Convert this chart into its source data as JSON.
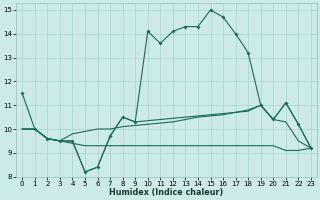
{
  "xlabel": "Humidex (Indice chaleur)",
  "xlim": [
    -0.5,
    23.5
  ],
  "ylim": [
    8,
    15.3
  ],
  "xticks": [
    0,
    1,
    2,
    3,
    4,
    5,
    6,
    7,
    8,
    9,
    10,
    11,
    12,
    13,
    14,
    15,
    16,
    17,
    18,
    19,
    20,
    21,
    22,
    23
  ],
  "yticks": [
    8,
    9,
    10,
    11,
    12,
    13,
    14,
    15
  ],
  "bg_color": "#cceae7",
  "line_color": "#1a6b5a",
  "grid_color": "#aad4d0",
  "line1_x": [
    0,
    1,
    2,
    3,
    4,
    5,
    6,
    7,
    8,
    9,
    10,
    11,
    12,
    13,
    14,
    15,
    16,
    17,
    18,
    19,
    20,
    21,
    22,
    23
  ],
  "line1_y": [
    11.5,
    10.0,
    9.6,
    9.5,
    9.5,
    8.2,
    8.4,
    9.7,
    10.5,
    10.3,
    14.1,
    13.6,
    14.1,
    14.3,
    14.3,
    15.0,
    14.7,
    14.0,
    13.2,
    11.0,
    10.4,
    11.1,
    10.2,
    9.2
  ],
  "line1_has_markers": true,
  "line2_x": [
    0,
    1,
    2,
    3,
    4,
    5,
    6,
    7,
    8,
    9,
    10,
    11,
    12,
    13,
    14,
    15,
    16,
    17,
    18,
    19,
    20,
    21,
    22,
    23
  ],
  "line2_y": [
    10.0,
    10.0,
    9.6,
    9.5,
    9.8,
    9.9,
    10.0,
    10.0,
    10.1,
    10.15,
    10.2,
    10.25,
    10.3,
    10.4,
    10.5,
    10.55,
    10.6,
    10.7,
    10.8,
    11.0,
    10.4,
    10.3,
    9.5,
    9.2
  ],
  "line2_has_markers": false,
  "line3_x": [
    0,
    1,
    2,
    3,
    4,
    5,
    6,
    7,
    8,
    9,
    10,
    11,
    12,
    13,
    14,
    15,
    16,
    17,
    18,
    19,
    20,
    21,
    22,
    23
  ],
  "line3_y": [
    10.0,
    10.0,
    9.6,
    9.5,
    9.4,
    9.3,
    9.3,
    9.3,
    9.3,
    9.3,
    9.3,
    9.3,
    9.3,
    9.3,
    9.3,
    9.3,
    9.3,
    9.3,
    9.3,
    9.3,
    9.3,
    9.1,
    9.1,
    9.2
  ],
  "line3_has_markers": false,
  "line4_x": [
    0,
    1,
    2,
    3,
    4,
    5,
    6,
    7,
    8,
    9,
    10,
    11,
    12,
    13,
    14,
    15,
    16,
    17,
    18,
    19,
    20,
    21,
    22,
    23
  ],
  "line4_y": [
    10.0,
    10.0,
    9.6,
    9.5,
    9.5,
    8.2,
    8.4,
    9.7,
    10.5,
    10.3,
    10.35,
    10.4,
    10.45,
    10.5,
    10.55,
    10.6,
    10.65,
    10.7,
    10.75,
    11.0,
    10.4,
    11.1,
    10.2,
    9.2
  ],
  "line4_has_markers": false
}
